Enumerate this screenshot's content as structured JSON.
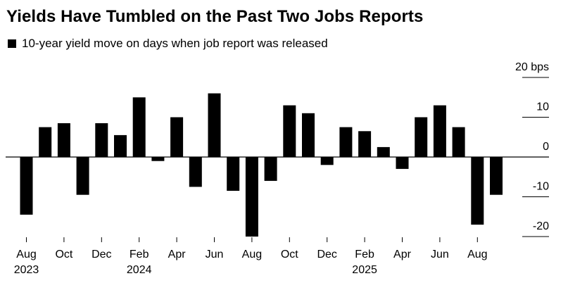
{
  "chart_data": {
    "type": "bar",
    "title": "Yields Have Tumbled on the Past Two Jobs Reports",
    "legend": {
      "label": "10-year yield move on days when job report was released",
      "color": "#000000"
    },
    "unit": "bps",
    "bar_color": "#000000",
    "categories": [
      "Aug 2023",
      "Sep 2023",
      "Oct 2023",
      "Nov 2023",
      "Dec 2023",
      "Jan 2024",
      "Feb 2024",
      "Mar 2024",
      "Apr 2024",
      "May 2024",
      "Jun 2024",
      "Jul 2024",
      "Aug 2024",
      "Sep 2024",
      "Oct 2024",
      "Nov 2024",
      "Dec 2024",
      "Jan 2025",
      "Feb 2025",
      "Mar 2025",
      "Apr 2025",
      "May 2025",
      "Jun 2025",
      "Jul 2025",
      "Aug 2025",
      "Sep 2025"
    ],
    "values": [
      -14.5,
      7.5,
      8.5,
      -9.5,
      8.5,
      5.5,
      15,
      -1,
      10,
      -7.5,
      16,
      -8.5,
      -20,
      -6,
      13,
      11,
      -2,
      7.5,
      6.5,
      2.5,
      -3,
      10,
      13,
      7.5,
      -17,
      -9.5
    ],
    "ylim": [
      -22,
      22
    ],
    "yticks": [
      20,
      10,
      0,
      -10,
      -20
    ],
    "ytick_labels": [
      "20 bps",
      "10",
      "0",
      "-10",
      "-20"
    ],
    "x_month_labels": [
      {
        "index": 0,
        "label": "Aug"
      },
      {
        "index": 2,
        "label": "Oct"
      },
      {
        "index": 4,
        "label": "Dec"
      },
      {
        "index": 6,
        "label": "Feb"
      },
      {
        "index": 8,
        "label": "Apr"
      },
      {
        "index": 10,
        "label": "Jun"
      },
      {
        "index": 12,
        "label": "Aug"
      },
      {
        "index": 14,
        "label": "Oct"
      },
      {
        "index": 16,
        "label": "Dec"
      },
      {
        "index": 18,
        "label": "Feb"
      },
      {
        "index": 20,
        "label": "Apr"
      },
      {
        "index": 22,
        "label": "Jun"
      },
      {
        "index": 24,
        "label": "Aug"
      }
    ],
    "x_year_labels": [
      {
        "index": 0,
        "label": "2023"
      },
      {
        "index": 6,
        "label": "2024"
      },
      {
        "index": 18,
        "label": "2025"
      }
    ],
    "grid": false,
    "legend_position": "top-left"
  }
}
